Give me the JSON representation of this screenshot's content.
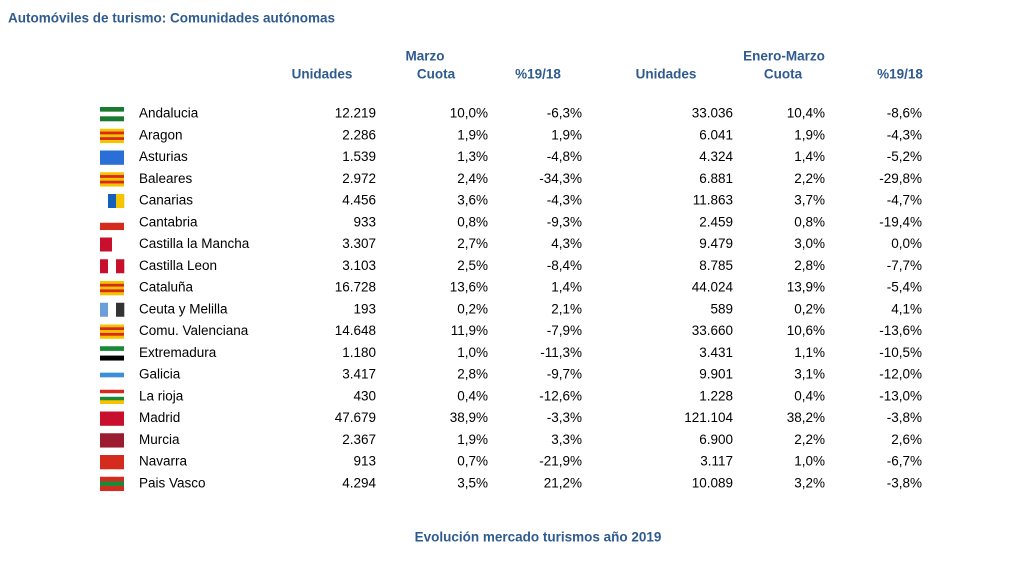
{
  "header": {
    "title": "Automóviles de turismo: Comunidades autónomas"
  },
  "table": {
    "groups": [
      "Marzo",
      "Enero-Marzo"
    ],
    "columns": [
      "Unidades",
      "Cuota",
      "%19/18",
      "Unidades",
      "Cuota",
      "%19/18"
    ],
    "rows": [
      [
        "Andalucia",
        "12.219",
        "10,0%",
        "-6,3%",
        "33.036",
        "10,4%",
        "-8,6%"
      ],
      [
        "Aragon",
        "2.286",
        "1,9%",
        "1,9%",
        "6.041",
        "1,9%",
        "-4,3%"
      ],
      [
        "Asturias",
        "1.539",
        "1,3%",
        "-4,8%",
        "4.324",
        "1,4%",
        "-5,2%"
      ],
      [
        "Baleares",
        "2.972",
        "2,4%",
        "-34,3%",
        "6.881",
        "2,2%",
        "-29,8%"
      ],
      [
        "Canarias",
        "4.456",
        "3,6%",
        "-4,3%",
        "11.863",
        "3,7%",
        "-4,7%"
      ],
      [
        "Cantabria",
        "933",
        "0,8%",
        "-9,3%",
        "2.459",
        "0,8%",
        "-19,4%"
      ],
      [
        "Castilla la Mancha",
        "3.307",
        "2,7%",
        "4,3%",
        "9.479",
        "3,0%",
        "0,0%"
      ],
      [
        "Castilla Leon",
        "3.103",
        "2,5%",
        "-8,4%",
        "8.785",
        "2,8%",
        "-7,7%"
      ],
      [
        "Cataluña",
        "16.728",
        "13,6%",
        "1,4%",
        "44.024",
        "13,9%",
        "-5,4%"
      ],
      [
        "Ceuta y Melilla",
        "193",
        "0,2%",
        "2,1%",
        "589",
        "0,2%",
        "4,1%"
      ],
      [
        "Comu. Valenciana",
        "14.648",
        "11,9%",
        "-7,9%",
        "33.660",
        "10,6%",
        "-13,6%"
      ],
      [
        "Extremadura",
        "1.180",
        "1,0%",
        "-11,3%",
        "3.431",
        "1,1%",
        "-10,5%"
      ],
      [
        "Galicia",
        "3.417",
        "2,8%",
        "-9,7%",
        "9.901",
        "3,1%",
        "-12,0%"
      ],
      [
        "La rioja",
        "430",
        "0,4%",
        "-12,6%",
        "1.228",
        "0,4%",
        "-13,0%"
      ],
      [
        "Madrid",
        "47.679",
        "38,9%",
        "-3,3%",
        "121.104",
        "38,2%",
        "-3,8%"
      ],
      [
        "Murcia",
        "2.367",
        "1,9%",
        "3,3%",
        "6.900",
        "2,2%",
        "2,6%"
      ],
      [
        "Navarra",
        "913",
        "0,7%",
        "-21,9%",
        "3.117",
        "1,0%",
        "-6,7%"
      ],
      [
        "Pais Vasco",
        "4.294",
        "3,5%",
        "21,2%",
        "10.089",
        "3,2%",
        "-3,8%"
      ]
    ]
  },
  "footer": {
    "text": "Evolución mercado turismos año 2019"
  }
}
